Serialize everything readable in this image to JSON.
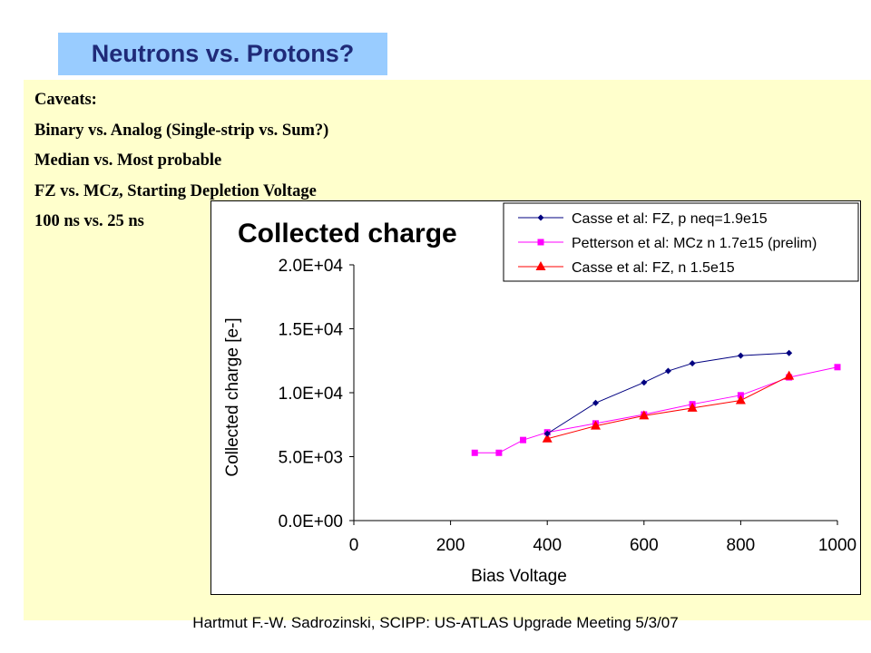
{
  "slide": {
    "title": "Neutrons vs. Protons?",
    "caveats": [
      "Caveats:",
      "Binary vs. Analog (Single-strip vs. Sum?)",
      "Median vs. Most probable",
      "FZ vs. MCz, Starting Depletion Voltage",
      "100 ns vs. 25 ns"
    ],
    "footer": "Hartmut F.-W. Sadrozinski, SCIPP: US-ATLAS Upgrade Meeting 5/3/07"
  },
  "colors": {
    "title_bg": "#99ccff",
    "title_text": "#1f2a78",
    "content_bg": "#ffffcc",
    "series_1": "#000080",
    "series_2": "#ff00ff",
    "series_3": "#ff0000"
  },
  "chart_data": {
    "type": "line",
    "title": "Collected charge",
    "xlabel": "Bias Voltage",
    "ylabel": "Collected charge [e-]",
    "xlim": [
      0,
      1000
    ],
    "ylim": [
      0,
      20000
    ],
    "x_ticks": [
      0,
      200,
      400,
      600,
      800,
      1000
    ],
    "x_tick_labels": [
      "0",
      "200",
      "400",
      "600",
      "800",
      "1000"
    ],
    "y_ticks": [
      0,
      5000,
      10000,
      15000,
      20000
    ],
    "y_tick_labels": [
      "0.0E+00",
      "5.0E+03",
      "1.0E+04",
      "1.5E+04",
      "2.0E+04"
    ],
    "grid": false,
    "legend_position": "top-right",
    "series": [
      {
        "name": "Casse et al: FZ, p neq=1.9e15",
        "color": "#000080",
        "marker": "diamond",
        "points": [
          [
            400,
            6800
          ],
          [
            500,
            9200
          ],
          [
            600,
            10800
          ],
          [
            650,
            11700
          ],
          [
            700,
            12300
          ],
          [
            800,
            12900
          ],
          [
            900,
            13100
          ]
        ]
      },
      {
        "name": "Petterson et al: MCz n 1.7e15 (prelim)",
        "color": "#ff00ff",
        "marker": "square",
        "points": [
          [
            250,
            5300
          ],
          [
            300,
            5300
          ],
          [
            350,
            6300
          ],
          [
            400,
            6900
          ],
          [
            500,
            7600
          ],
          [
            600,
            8300
          ],
          [
            700,
            9100
          ],
          [
            800,
            9800
          ],
          [
            900,
            11200
          ],
          [
            1000,
            12000
          ]
        ]
      },
      {
        "name": "Casse et al: FZ, n 1.5e15",
        "color": "#ff0000",
        "marker": "triangle",
        "points": [
          [
            400,
            6400
          ],
          [
            500,
            7400
          ],
          [
            600,
            8200
          ],
          [
            700,
            8800
          ],
          [
            800,
            9400
          ],
          [
            900,
            11300
          ]
        ]
      }
    ]
  }
}
